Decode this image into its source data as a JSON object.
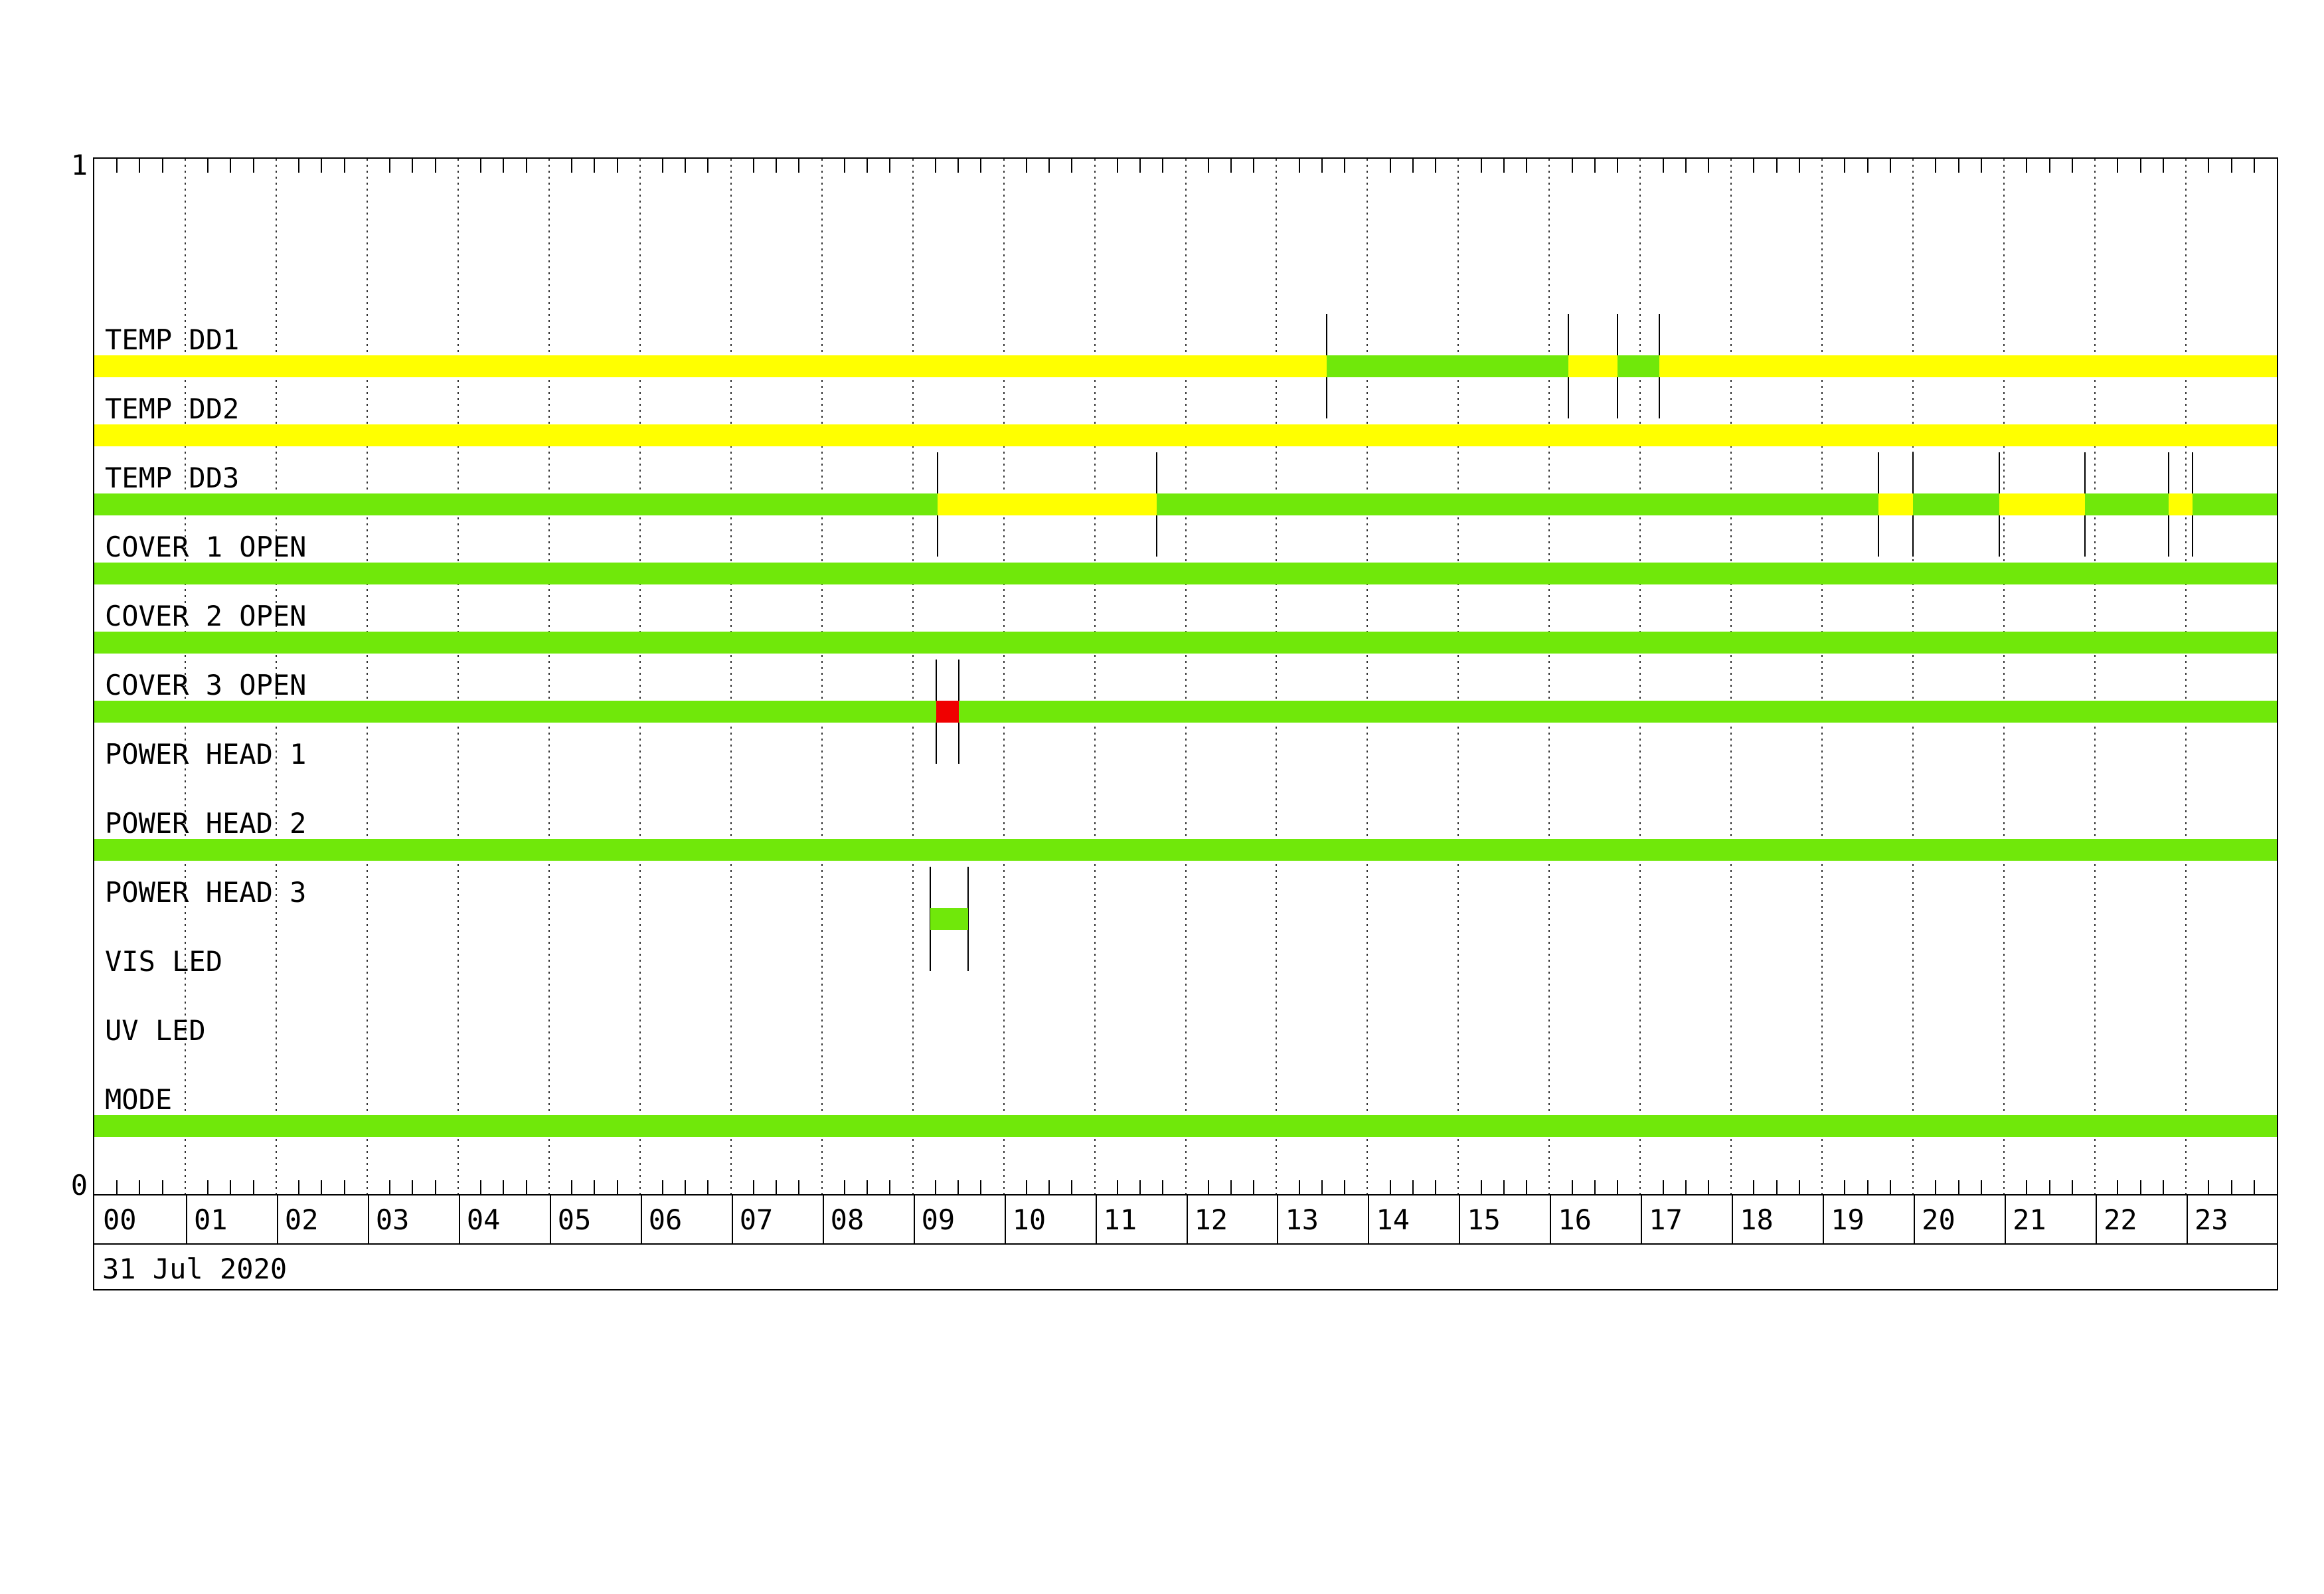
{
  "page": {
    "background": "#ffffff"
  },
  "chart_data": {
    "type": "timeline",
    "date_label": "31 Jul 2020",
    "x_axis": {
      "unit": "hour",
      "start": 0,
      "end": 24,
      "tick_interval_minutes": 15,
      "gridline_interval_hours": 1,
      "hour_labels": [
        "00",
        "01",
        "02",
        "03",
        "04",
        "05",
        "06",
        "07",
        "08",
        "09",
        "10",
        "11",
        "12",
        "13",
        "14",
        "15",
        "16",
        "17",
        "18",
        "19",
        "20",
        "21",
        "22",
        "23"
      ]
    },
    "y_axis": {
      "top_label": "1",
      "bottom_label": "0"
    },
    "colors": {
      "green": "#70E80A",
      "yellow": "#FFFF00",
      "red": "#F00000",
      "frame": "#000000",
      "grid": "#333333",
      "background": "#FFFFFF"
    },
    "rows": [
      {
        "label": "TEMP DD1",
        "base": "yellow",
        "segments": [
          {
            "start": 13.55,
            "end": 16.21,
            "color": "green"
          },
          {
            "start": 16.75,
            "end": 17.21,
            "color": "green"
          }
        ],
        "markers": [
          13.55,
          16.21,
          16.75,
          17.21
        ]
      },
      {
        "label": "TEMP DD2",
        "base": "yellow",
        "segments": [],
        "markers": []
      },
      {
        "label": "TEMP DD3",
        "base": "green",
        "segments": [
          {
            "start": 9.27,
            "end": 11.68,
            "color": "yellow"
          },
          {
            "start": 19.62,
            "end": 20.0,
            "color": "yellow"
          },
          {
            "start": 20.95,
            "end": 21.89,
            "color": "yellow"
          },
          {
            "start": 22.81,
            "end": 23.07,
            "color": "yellow"
          }
        ],
        "markers": [
          9.27,
          11.68,
          19.62,
          20.0,
          20.95,
          21.89,
          22.81,
          23.07
        ]
      },
      {
        "label": "COVER 1 OPEN",
        "base": "green",
        "segments": [],
        "markers": []
      },
      {
        "label": "COVER 2 OPEN",
        "base": "green",
        "segments": [],
        "markers": []
      },
      {
        "label": "COVER 3 OPEN",
        "base": "green",
        "segments": [
          {
            "start": 9.26,
            "end": 9.51,
            "color": "red"
          }
        ],
        "markers": [
          9.26,
          9.51
        ]
      },
      {
        "label": "POWER HEAD 1",
        "base": "none",
        "segments": [],
        "markers": []
      },
      {
        "label": "POWER HEAD 2",
        "base": "green",
        "segments": [],
        "markers": []
      },
      {
        "label": "POWER HEAD 3",
        "base": "none",
        "segments": [
          {
            "start": 9.19,
            "end": 9.61,
            "color": "green"
          }
        ],
        "markers": [
          9.19,
          9.61
        ]
      },
      {
        "label": "VIS LED",
        "base": "none",
        "segments": [],
        "markers": []
      },
      {
        "label": "UV LED",
        "base": "none",
        "segments": [],
        "markers": []
      },
      {
        "label": "MODE",
        "base": "green",
        "segments": [],
        "markers": []
      }
    ]
  }
}
